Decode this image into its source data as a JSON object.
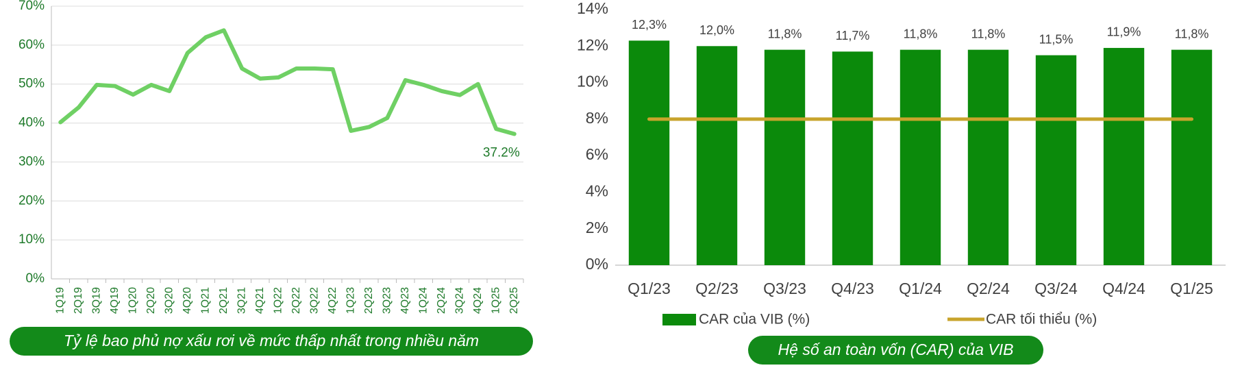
{
  "chart_data": [
    {
      "type": "line",
      "caption": "Tỷ lệ bao phủ nợ xấu rơi về mức thấp nhất trong nhiều năm",
      "categories": [
        "1Q19",
        "2Q19",
        "3Q19",
        "4Q19",
        "1Q20",
        "2Q20",
        "3Q20",
        "4Q20",
        "1Q21",
        "2Q21",
        "3Q21",
        "4Q21",
        "1Q22",
        "2Q22",
        "3Q22",
        "4Q22",
        "1Q23",
        "2Q23",
        "3Q23",
        "4Q23",
        "1Q24",
        "2Q24",
        "3Q24",
        "4Q24",
        "1Q25",
        "2Q25"
      ],
      "values": [
        40.2,
        44,
        49.8,
        49.5,
        47.3,
        49.8,
        48.2,
        58,
        62,
        63.8,
        54,
        51.4,
        51.7,
        54,
        54,
        53.8,
        38,
        39,
        41.3,
        51,
        49.8,
        48.2,
        47.2,
        50,
        38.5,
        37.2
      ],
      "color": "#6fd064",
      "annotation": "37.2%",
      "ylim": [
        0,
        70
      ],
      "yticks": [
        {
          "value": 0,
          "label": "0%"
        },
        {
          "value": 10,
          "label": "10%"
        },
        {
          "value": 20,
          "label": "20%"
        },
        {
          "value": 30,
          "label": "30%"
        },
        {
          "value": 40,
          "label": "40%"
        },
        {
          "value": 50,
          "label": "50%"
        },
        {
          "value": 60,
          "label": "60%"
        },
        {
          "value": 70,
          "label": "70%"
        }
      ],
      "grid": true
    },
    {
      "type": "bar",
      "caption": "Hệ số an toàn vốn (CAR) của VIB",
      "categories": [
        "Q1/23",
        "Q2/23",
        "Q3/23",
        "Q4/23",
        "Q1/24",
        "Q2/24",
        "Q3/24",
        "Q4/24",
        "Q1/25"
      ],
      "series": [
        {
          "name": "CAR của VIB (%)",
          "type": "bar",
          "color": "#0b8a0b",
          "values": [
            12.3,
            12.0,
            11.8,
            11.7,
            11.8,
            11.8,
            11.5,
            11.9,
            11.8
          ],
          "value_labels": [
            "12,3%",
            "12,0%",
            "11,8%",
            "11,7%",
            "11,8%",
            "11,8%",
            "11,5%",
            "11,9%",
            "11,8%"
          ]
        },
        {
          "name": "CAR tối thiểu (%)",
          "type": "line",
          "color": "#c8a42c",
          "values": [
            8,
            8,
            8,
            8,
            8,
            8,
            8,
            8,
            8
          ]
        }
      ],
      "ylim": [
        0,
        14
      ],
      "yticks": [
        {
          "value": 0,
          "label": "0%"
        },
        {
          "value": 2,
          "label": "2%"
        },
        {
          "value": 4,
          "label": "4%"
        },
        {
          "value": 6,
          "label": "6%"
        },
        {
          "value": 8,
          "label": "8%"
        },
        {
          "value": 10,
          "label": "10%"
        },
        {
          "value": 12,
          "label": "12%"
        },
        {
          "value": 14,
          "label": "14%"
        }
      ],
      "grid": false
    }
  ]
}
